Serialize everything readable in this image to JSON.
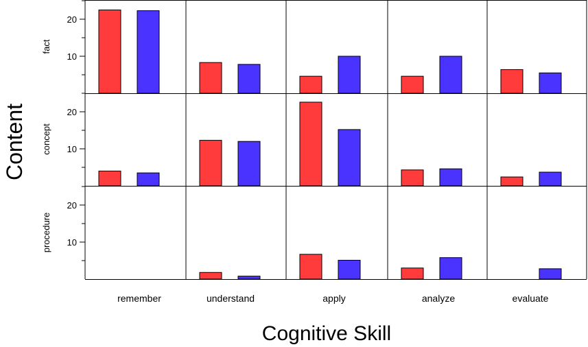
{
  "chart_data": {
    "type": "bar",
    "layout": "small-multiples",
    "xlabel": "Cognitive Skill",
    "ylabel": "Content",
    "columns": [
      "remember",
      "understand",
      "apply",
      "analyze",
      "evaluate"
    ],
    "rows": [
      "fact",
      "concept",
      "procedure"
    ],
    "ylim": [
      0,
      25
    ],
    "yticks": [
      10,
      20
    ],
    "series": [
      {
        "name": "series-red",
        "color": "#ff3b3b"
      },
      {
        "name": "series-blue",
        "color": "#4b33ff"
      }
    ],
    "values": {
      "fact": {
        "remember": [
          22.5,
          22.3
        ],
        "understand": [
          8.3,
          7.8
        ],
        "apply": [
          4.6,
          10.0
        ],
        "analyze": [
          4.6,
          10.0
        ],
        "evaluate": [
          6.4,
          5.5
        ]
      },
      "concept": {
        "remember": [
          4.0,
          3.5
        ],
        "understand": [
          12.3,
          12.0
        ],
        "apply": [
          22.6,
          15.2
        ],
        "analyze": [
          4.3,
          4.6
        ],
        "evaluate": [
          2.4,
          3.7
        ]
      },
      "procedure": {
        "remember": [
          0,
          0
        ],
        "understand": [
          1.8,
          0.8
        ],
        "apply": [
          6.7,
          5.1
        ],
        "analyze": [
          3.0,
          5.8
        ],
        "evaluate": [
          0,
          2.8
        ]
      }
    }
  }
}
